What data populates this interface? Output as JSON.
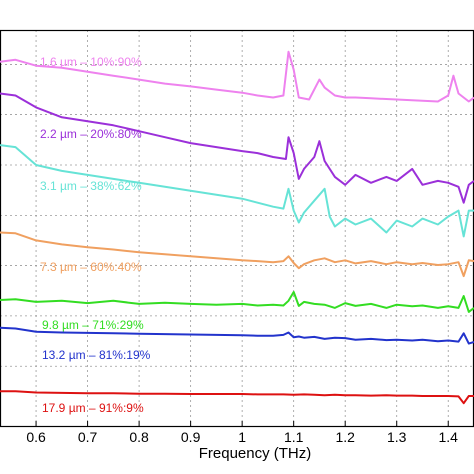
{
  "chart_data": {
    "type": "line",
    "xlabel": "Frequency (THz)",
    "xticks": [
      "0.6",
      "0.7",
      "0.8",
      "0.9",
      "1",
      "1.1",
      "1.2",
      "1.3",
      "1.4"
    ],
    "xlim": [
      0.53,
      1.45
    ],
    "ylim": [
      0,
      1
    ],
    "grid": true,
    "series": [
      {
        "name": "1.6 µm – 10%:90%",
        "color": "#ee82ee",
        "x": [
          0.53,
          0.56,
          0.6,
          0.65,
          0.7,
          0.75,
          0.8,
          0.85,
          0.9,
          0.95,
          1.0,
          1.03,
          1.06,
          1.08,
          1.09,
          1.1,
          1.11,
          1.13,
          1.15,
          1.16,
          1.18,
          1.2,
          1.22,
          1.25,
          1.3,
          1.35,
          1.38,
          1.4,
          1.41,
          1.42,
          1.44,
          1.45
        ],
        "y": [
          0.92,
          0.925,
          0.91,
          0.905,
          0.895,
          0.885,
          0.875,
          0.865,
          0.858,
          0.85,
          0.842,
          0.835,
          0.83,
          0.835,
          0.945,
          0.9,
          0.83,
          0.825,
          0.875,
          0.855,
          0.835,
          0.83,
          0.83,
          0.828,
          0.825,
          0.822,
          0.82,
          0.835,
          0.885,
          0.84,
          0.82,
          0.83
        ]
      },
      {
        "name": "2.2 µm – 20%:80%",
        "color": "#9b30d9",
        "x": [
          0.53,
          0.56,
          0.6,
          0.65,
          0.7,
          0.75,
          0.8,
          0.85,
          0.9,
          0.95,
          1.0,
          1.03,
          1.06,
          1.085,
          1.09,
          1.1,
          1.11,
          1.12,
          1.14,
          1.15,
          1.16,
          1.18,
          1.2,
          1.22,
          1.25,
          1.28,
          1.3,
          1.33,
          1.35,
          1.38,
          1.4,
          1.42,
          1.43,
          1.44,
          1.45
        ],
        "y": [
          0.84,
          0.835,
          0.805,
          0.78,
          0.77,
          0.76,
          0.745,
          0.73,
          0.715,
          0.705,
          0.695,
          0.69,
          0.68,
          0.675,
          0.73,
          0.69,
          0.625,
          0.65,
          0.68,
          0.72,
          0.67,
          0.63,
          0.61,
          0.635,
          0.615,
          0.63,
          0.62,
          0.65,
          0.61,
          0.62,
          0.615,
          0.605,
          0.565,
          0.61,
          0.62
        ]
      },
      {
        "name": "3.1 µm – 38%:62%",
        "color": "#66e3d6",
        "x": [
          0.53,
          0.56,
          0.6,
          0.65,
          0.7,
          0.75,
          0.8,
          0.85,
          0.9,
          0.95,
          1.0,
          1.03,
          1.06,
          1.08,
          1.09,
          1.1,
          1.11,
          1.12,
          1.14,
          1.16,
          1.17,
          1.18,
          1.2,
          1.22,
          1.25,
          1.28,
          1.3,
          1.33,
          1.35,
          1.38,
          1.4,
          1.42,
          1.43,
          1.44,
          1.45
        ],
        "y": [
          0.71,
          0.705,
          0.66,
          0.645,
          0.635,
          0.625,
          0.615,
          0.605,
          0.595,
          0.585,
          0.575,
          0.565,
          0.555,
          0.55,
          0.6,
          0.545,
          0.515,
          0.54,
          0.57,
          0.6,
          0.53,
          0.505,
          0.525,
          0.51,
          0.525,
          0.49,
          0.52,
          0.505,
          0.525,
          0.51,
          0.53,
          0.545,
          0.48,
          0.545,
          0.545
        ]
      },
      {
        "name": "7.3 µm – 60%:40%",
        "color": "#f0a060",
        "x": [
          0.53,
          0.56,
          0.6,
          0.65,
          0.7,
          0.75,
          0.8,
          0.85,
          0.9,
          0.95,
          1.0,
          1.03,
          1.06,
          1.08,
          1.09,
          1.1,
          1.11,
          1.12,
          1.14,
          1.16,
          1.18,
          1.2,
          1.22,
          1.25,
          1.28,
          1.3,
          1.33,
          1.35,
          1.38,
          1.4,
          1.42,
          1.43,
          1.44,
          1.45
        ],
        "y": [
          0.49,
          0.488,
          0.47,
          0.46,
          0.453,
          0.447,
          0.44,
          0.435,
          0.43,
          0.425,
          0.42,
          0.418,
          0.415,
          0.418,
          0.43,
          0.413,
          0.4,
          0.41,
          0.42,
          0.425,
          0.415,
          0.42,
          0.412,
          0.418,
          0.41,
          0.415,
          0.41,
          0.413,
          0.408,
          0.41,
          0.415,
          0.38,
          0.42,
          0.418
        ]
      },
      {
        "name": "9.8 µm – 71%:29%",
        "color": "#33dd22",
        "x": [
          0.53,
          0.56,
          0.6,
          0.65,
          0.7,
          0.75,
          0.8,
          0.85,
          0.9,
          0.95,
          1.0,
          1.03,
          1.06,
          1.08,
          1.09,
          1.1,
          1.11,
          1.12,
          1.14,
          1.16,
          1.18,
          1.2,
          1.22,
          1.25,
          1.28,
          1.3,
          1.33,
          1.35,
          1.38,
          1.4,
          1.42,
          1.43,
          1.44,
          1.45
        ],
        "y": [
          0.32,
          0.322,
          0.315,
          0.318,
          0.312,
          0.318,
          0.31,
          0.313,
          0.31,
          0.308,
          0.31,
          0.306,
          0.308,
          0.306,
          0.318,
          0.34,
          0.305,
          0.315,
          0.31,
          0.308,
          0.3,
          0.312,
          0.305,
          0.31,
          0.3,
          0.308,
          0.304,
          0.306,
          0.3,
          0.304,
          0.3,
          0.33,
          0.29,
          0.3
        ]
      },
      {
        "name": "13.2 µm – 81%:19%",
        "color": "#2233cc",
        "x": [
          0.53,
          0.56,
          0.6,
          0.65,
          0.7,
          0.75,
          0.8,
          0.85,
          0.9,
          0.95,
          1.0,
          1.03,
          1.06,
          1.08,
          1.09,
          1.1,
          1.11,
          1.12,
          1.14,
          1.16,
          1.18,
          1.2,
          1.22,
          1.25,
          1.28,
          1.3,
          1.33,
          1.35,
          1.38,
          1.4,
          1.42,
          1.43,
          1.44,
          1.45
        ],
        "y": [
          0.25,
          0.248,
          0.24,
          0.238,
          0.237,
          0.236,
          0.235,
          0.234,
          0.233,
          0.232,
          0.231,
          0.23,
          0.23,
          0.232,
          0.238,
          0.226,
          0.228,
          0.225,
          0.227,
          0.222,
          0.225,
          0.224,
          0.22,
          0.222,
          0.219,
          0.22,
          0.218,
          0.22,
          0.216,
          0.218,
          0.215,
          0.236,
          0.21,
          0.214
        ]
      },
      {
        "name": "17.9 µm – 91%:9%",
        "color": "#dd1111",
        "x": [
          0.53,
          0.56,
          0.6,
          0.65,
          0.7,
          0.75,
          0.8,
          0.85,
          0.9,
          0.95,
          1.0,
          1.03,
          1.06,
          1.08,
          1.1,
          1.12,
          1.14,
          1.16,
          1.18,
          1.2,
          1.22,
          1.25,
          1.28,
          1.3,
          1.33,
          1.35,
          1.38,
          1.4,
          1.42,
          1.43,
          1.44,
          1.45
        ],
        "y": [
          0.09,
          0.09,
          0.087,
          0.086,
          0.085,
          0.085,
          0.084,
          0.084,
          0.083,
          0.083,
          0.083,
          0.082,
          0.082,
          0.082,
          0.081,
          0.082,
          0.081,
          0.08,
          0.081,
          0.08,
          0.08,
          0.079,
          0.08,
          0.079,
          0.079,
          0.078,
          0.078,
          0.078,
          0.077,
          0.06,
          0.078,
          0.078
        ]
      }
    ]
  }
}
